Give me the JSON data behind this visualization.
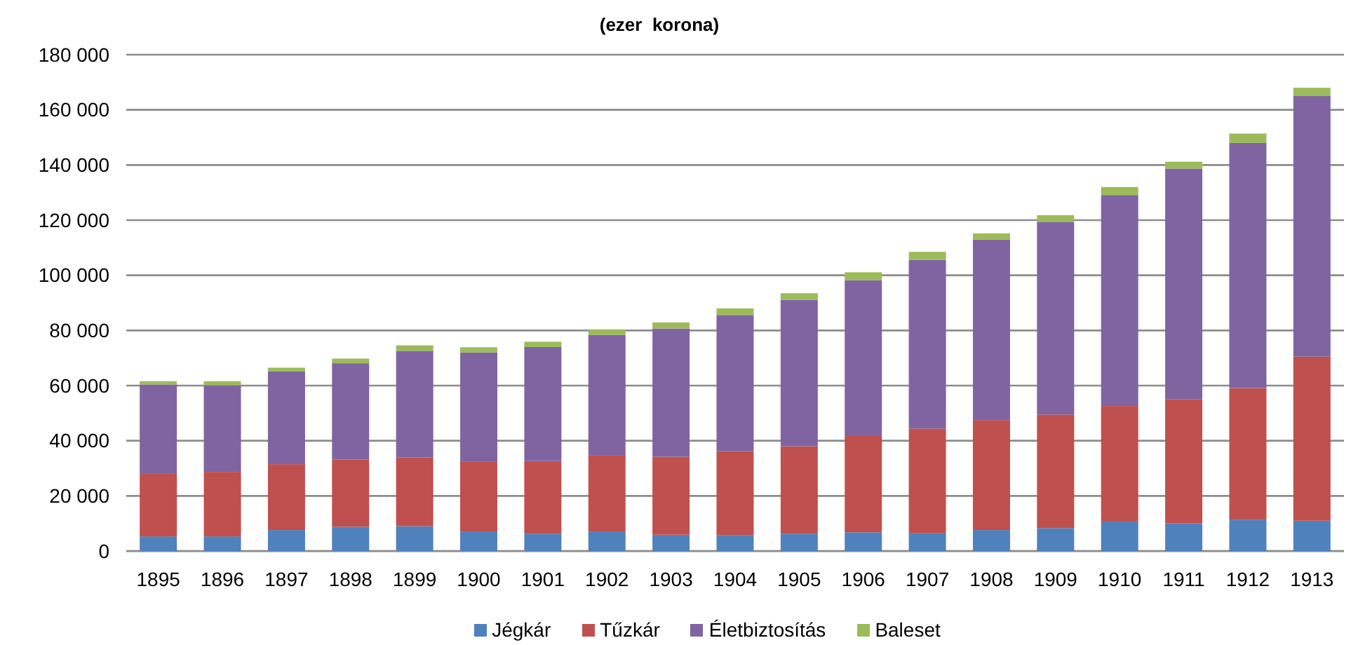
{
  "chart_data": {
    "type": "bar",
    "stacked": true,
    "title": "(ezer  korona)",
    "categories": [
      "1895",
      "1896",
      "1897",
      "1898",
      "1899",
      "1900",
      "1901",
      "1902",
      "1903",
      "1904",
      "1905",
      "1906",
      "1907",
      "1908",
      "1909",
      "1910",
      "1911",
      "1912",
      "1913"
    ],
    "series": [
      {
        "name": "Jégkár",
        "color": "#4f81bd",
        "values": [
          5300,
          5300,
          7600,
          8800,
          9000,
          7100,
          6300,
          7100,
          5900,
          5800,
          6300,
          6800,
          6400,
          7600,
          8300,
          10700,
          10000,
          11400,
          11000
        ]
      },
      {
        "name": "Tűzkár",
        "color": "#c0504d",
        "values": [
          22900,
          23400,
          23900,
          24400,
          24900,
          25400,
          26300,
          27500,
          28300,
          30400,
          31700,
          34900,
          38000,
          39900,
          41200,
          41900,
          45100,
          47700,
          59500
        ]
      },
      {
        "name": "Életbiztosítás",
        "color": "#8064a2",
        "values": [
          32200,
          31400,
          33600,
          34900,
          38700,
          39500,
          41400,
          43800,
          46500,
          49400,
          53100,
          56500,
          61200,
          65500,
          69900,
          76500,
          83600,
          88900,
          94500
        ]
      },
      {
        "name": "Baleset",
        "color": "#9bbb59",
        "values": [
          1200,
          1500,
          1400,
          1700,
          2000,
          1900,
          1900,
          2000,
          2200,
          2400,
          2400,
          2900,
          2900,
          2200,
          2400,
          2900,
          2500,
          3400,
          3000
        ]
      }
    ],
    "ylim": [
      0,
      180000
    ],
    "yticks": [
      0,
      {
        "value": 20000,
        "label": "20 000"
      },
      {
        "value": 40000,
        "label": "40 000"
      },
      {
        "value": 60000,
        "label": "60 000"
      },
      {
        "value": 80000,
        "label": "80 000"
      },
      {
        "value": 100000,
        "label": "100 000"
      },
      {
        "value": 120000,
        "label": "120 000"
      },
      {
        "value": 140000,
        "label": "140 000"
      },
      {
        "value": 160000,
        "label": "160 000"
      },
      {
        "value": 180000,
        "label": "180 000"
      }
    ],
    "grid": "y",
    "legend": "bottom"
  }
}
